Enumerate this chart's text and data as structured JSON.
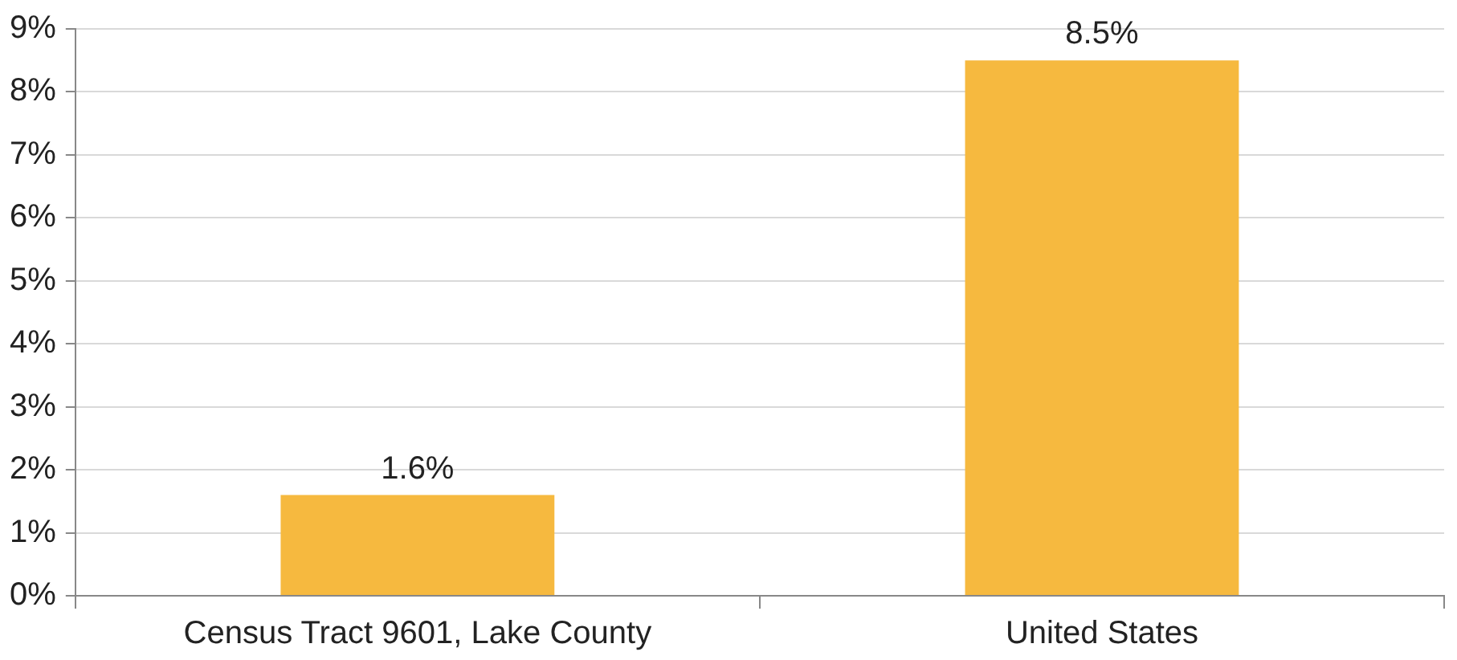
{
  "chart_data": {
    "type": "bar",
    "categories": [
      "Census Tract 9601, Lake County",
      "United States"
    ],
    "values": [
      1.6,
      8.5
    ],
    "color": "#f6b93f",
    "value_labels": [
      "1.6%",
      "8.5%"
    ],
    "ylim": [
      0,
      9
    ],
    "yticks": [
      {
        "value": 0,
        "label": "0%"
      },
      {
        "value": 1,
        "label": "1%"
      },
      {
        "value": 2,
        "label": "2%"
      },
      {
        "value": 3,
        "label": "3%"
      },
      {
        "value": 4,
        "label": "4%"
      },
      {
        "value": 5,
        "label": "5%"
      },
      {
        "value": 6,
        "label": "6%"
      },
      {
        "value": 7,
        "label": "7%"
      },
      {
        "value": 8,
        "label": "8%"
      },
      {
        "value": 9,
        "label": "9%"
      }
    ],
    "grid": "y",
    "legend": false
  }
}
